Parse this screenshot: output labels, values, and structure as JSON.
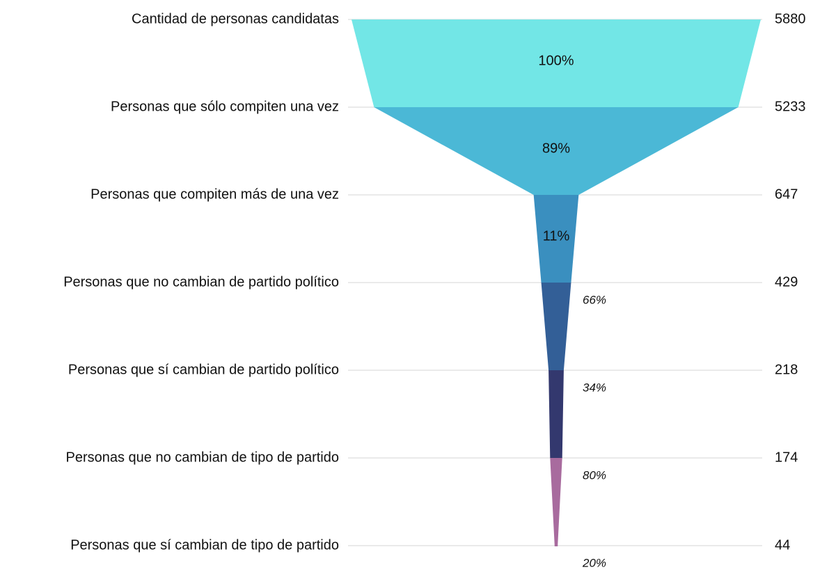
{
  "chart_data": {
    "type": "funnel",
    "categories": [
      "Cantidad de personas candidatas",
      "Personas que sólo compiten una vez",
      "Personas que compiten más de una vez",
      "Personas que no cambian de partido político",
      "Personas que sí cambian de partido político",
      "Personas que no cambian de tipo de partido",
      "Personas que sí cambian de tipo de partido"
    ],
    "values": [
      5880,
      5233,
      647,
      429,
      218,
      174,
      44
    ],
    "percentages": [
      100,
      89,
      11,
      66,
      34,
      80,
      20
    ],
    "percentage_labels": [
      "100%",
      "89%",
      "11%",
      "66%",
      "34%",
      "80%",
      "20%"
    ],
    "colors": [
      "#72e6e6",
      "#4bb8d6",
      "#3a8fbf",
      "#335f97",
      "#33386e",
      "#a86b9e",
      "#a86b9e"
    ],
    "grid": true
  }
}
